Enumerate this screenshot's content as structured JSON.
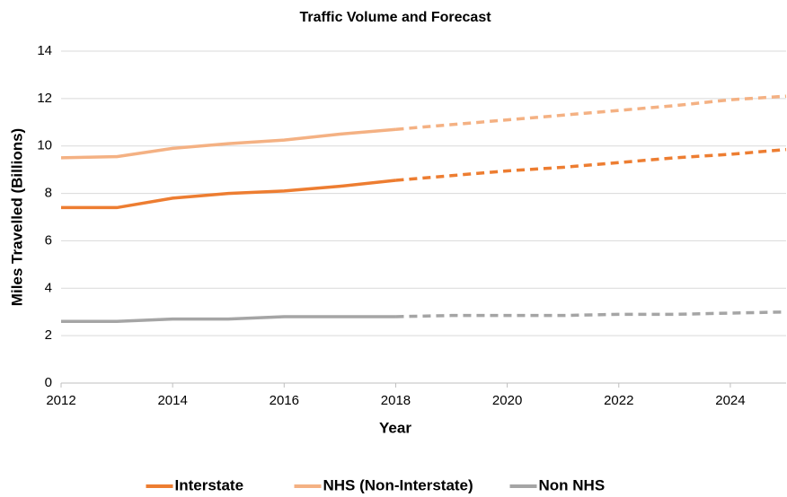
{
  "chart_data": {
    "type": "line",
    "title": "Traffic Volume and Forecast",
    "x_label": "Year",
    "y_label": "Miles Travelled (Billions)",
    "x": [
      2012,
      2013,
      2014,
      2015,
      2016,
      2017,
      2018,
      2019,
      2020,
      2021,
      2022,
      2023,
      2024,
      2025
    ],
    "forecast_from": 2018,
    "series": [
      {
        "name": "Interstate",
        "color": "#ed7d31",
        "values": [
          7.4,
          7.4,
          7.8,
          8.0,
          8.1,
          8.3,
          8.55,
          8.75,
          8.95,
          9.1,
          9.3,
          9.5,
          9.65,
          9.85
        ]
      },
      {
        "name": "NHS (Non-Interstate)",
        "color": "#f4b183",
        "values": [
          9.5,
          9.55,
          9.9,
          10.1,
          10.25,
          10.5,
          10.7,
          10.9,
          11.1,
          11.3,
          11.5,
          11.7,
          11.95,
          12.1
        ]
      },
      {
        "name": "Non NHS",
        "color": "#a5a5a5",
        "values": [
          2.6,
          2.6,
          2.7,
          2.7,
          2.8,
          2.8,
          2.8,
          2.85,
          2.85,
          2.85,
          2.9,
          2.9,
          2.95,
          3.0
        ]
      }
    ],
    "xlim": [
      2012,
      2025
    ],
    "xticks": [
      2012,
      2014,
      2016,
      2018,
      2020,
      2022,
      2024
    ],
    "ylim": [
      0,
      14
    ],
    "yticks": [
      0,
      2,
      4,
      6,
      8,
      10,
      12,
      14
    ],
    "grid": true,
    "legend": "bottom"
  }
}
